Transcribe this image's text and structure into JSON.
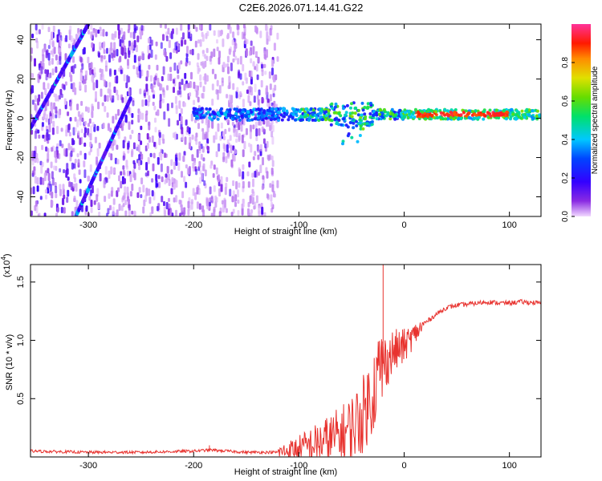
{
  "title": "C2E6.2026.071.14.41.G22",
  "colors": {
    "snr_line": "#e8332f",
    "frame": "#000000",
    "colormap": [
      "#f2d9ff",
      "#6a00e6",
      "#0000ff",
      "#00c8ff",
      "#00e06a",
      "#c8e000",
      "#ff8c00",
      "#ff0000",
      "#ff33cc"
    ]
  },
  "chart_data": [
    {
      "type": "heatmap",
      "title": "C2E6.2026.071.14.41.G22",
      "xlabel": "Height of straight line (km)",
      "ylabel": "Frequency (Hz)",
      "xlim": [
        -355,
        130
      ],
      "ylim": [
        -50,
        48
      ],
      "x_ticks": [
        -300,
        -200,
        -100,
        0,
        100
      ],
      "x_tick_labels": [
        "-300",
        "-200",
        "-100",
        "0",
        "100"
      ],
      "y_ticks": [
        -40,
        -20,
        0,
        20,
        40
      ],
      "y_tick_labels": [
        "-40",
        "-20",
        "0",
        "20",
        "40"
      ],
      "colorbar": {
        "label": "Normalized spectral amplitude",
        "range": [
          0,
          1
        ],
        "ticks": [
          0.0,
          0.2,
          0.4,
          0.6,
          0.8
        ],
        "tick_labels": [
          "0.0",
          "0.2",
          "0.4",
          "0.6",
          "0.8"
        ]
      },
      "features": {
        "noise_region_x": [
          -355,
          -120
        ],
        "diagonal_track_1": {
          "from": [
            -355,
            -5
          ],
          "to": [
            -300,
            48
          ]
        },
        "diagonal_track_2": {
          "from": [
            -312,
            -50
          ],
          "to": [
            -260,
            10
          ]
        },
        "ridge_start_x": -200,
        "ridge_frequency": 2,
        "peak_region_x": [
          10,
          100
        ],
        "peak_amplitude": 1.0
      },
      "grid": false
    },
    {
      "type": "line",
      "xlabel": "Height of straight line (km)",
      "ylabel": "SNR (10 * v/v)",
      "scale_label": "(x10",
      "scale_exponent": "4",
      "scale_close": ")",
      "xlim": [
        -355,
        130
      ],
      "ylim": [
        0,
        1.65
      ],
      "x_ticks": [
        -300,
        -200,
        -100,
        0,
        100
      ],
      "x_tick_labels": [
        "-300",
        "-200",
        "-100",
        "0",
        "100"
      ],
      "y_ticks": [
        0.5,
        1.0,
        1.5
      ],
      "y_tick_labels": [
        "0.5",
        "1.0",
        "1.5"
      ],
      "series": [
        {
          "x": [
            -355,
            -300,
            -250,
            -200,
            -185,
            -150,
            -120,
            -100,
            -80,
            -60,
            -50,
            -40,
            -30,
            -25,
            -20,
            -15,
            -10,
            0,
            10,
            20,
            30,
            40,
            50,
            60,
            70,
            80,
            90,
            100,
            110,
            130
          ],
          "y": [
            0.05,
            0.04,
            0.04,
            0.05,
            0.06,
            0.04,
            0.04,
            0.07,
            0.12,
            0.18,
            0.25,
            0.35,
            0.55,
            0.7,
            0.8,
            0.85,
            0.9,
            0.95,
            1.05,
            1.15,
            1.22,
            1.28,
            1.3,
            1.31,
            1.32,
            1.33,
            1.32,
            1.32,
            1.33,
            1.32
          ]
        }
      ],
      "spikes": [
        {
          "x": -185,
          "y": 0.1
        },
        {
          "x": -20,
          "y": 1.65
        }
      ],
      "grid": false
    }
  ]
}
